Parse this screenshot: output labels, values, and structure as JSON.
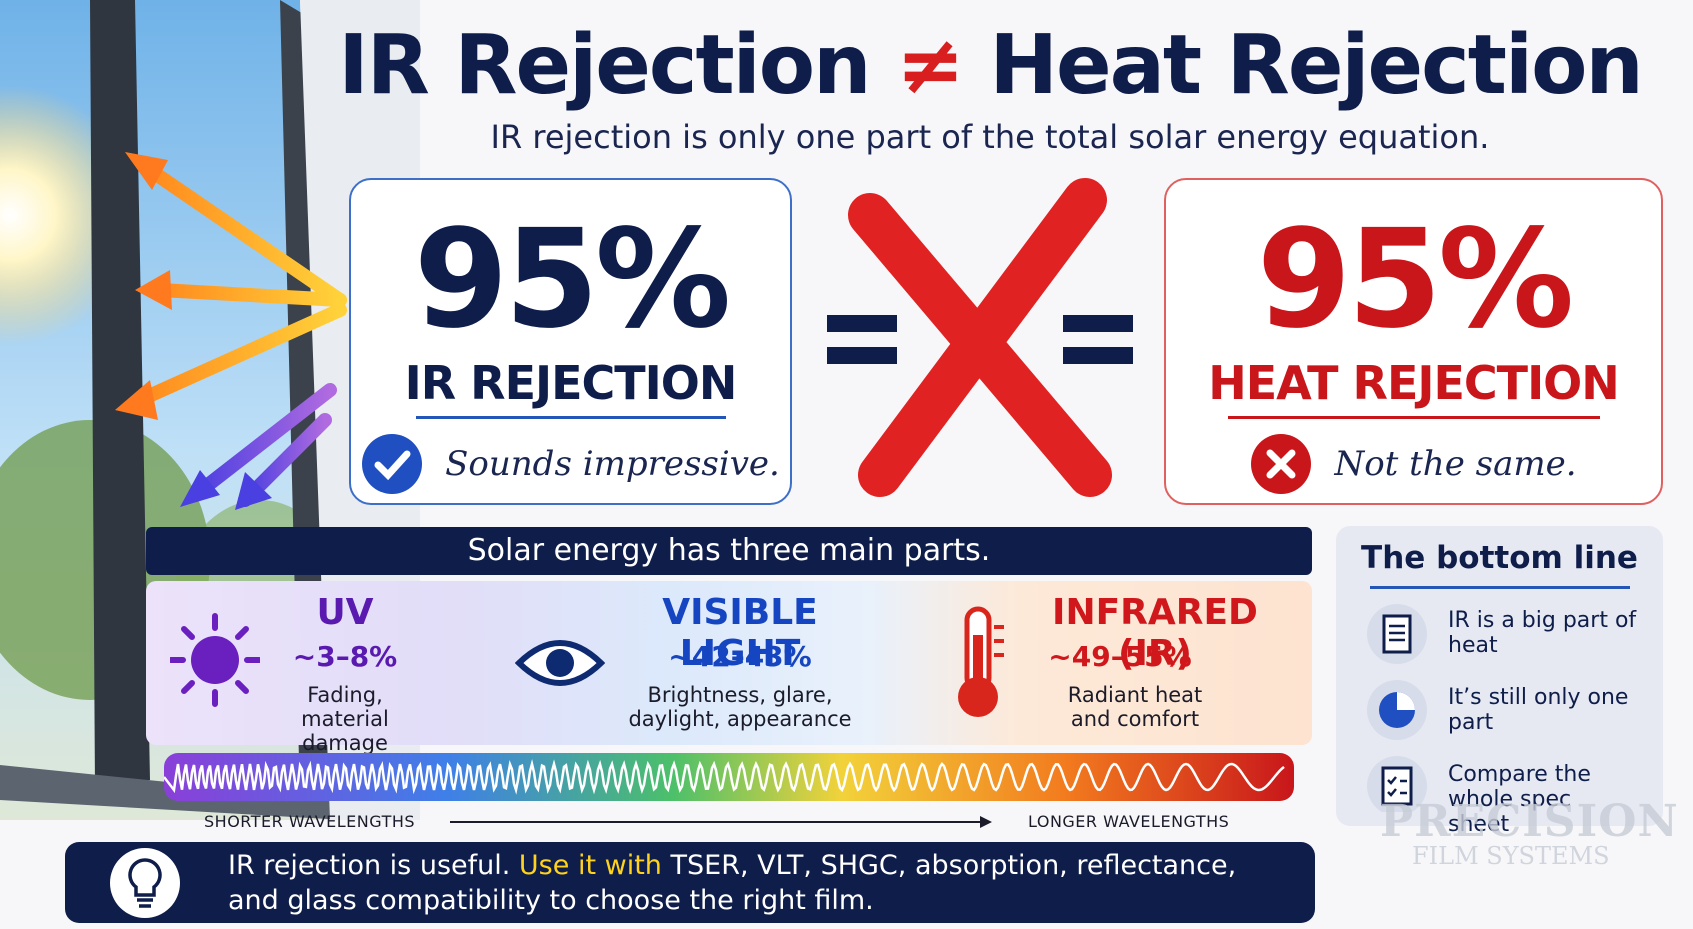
{
  "title": {
    "left": "IR Rejection",
    "symbol": "≠",
    "right": "Heat Rejection"
  },
  "subtitle": "IR rejection is only one part of the total solar energy equation.",
  "left_card": {
    "number": "95%",
    "label": "IR REJECTION",
    "note": "Sounds impressive."
  },
  "right_card": {
    "number": "95%",
    "label": "HEAT REJECTION",
    "note": "Not the same."
  },
  "parts": {
    "header": "Solar energy has three main parts.",
    "items": [
      {
        "name": "UV",
        "share": "~3–8%",
        "description": "Fading, material damage"
      },
      {
        "name": "VISIBLE LIGHT",
        "share": "~42–43%",
        "description": "Brightness, glare, daylight, appearance"
      },
      {
        "name": "INFRARED (IR)",
        "share": "~49–55%",
        "description": "Radiant heat and comfort"
      }
    ],
    "short_label": "SHORTER WAVELENGTHS",
    "long_label": "LONGER WAVELENGTHS"
  },
  "bottom_line": {
    "title": "The bottom line",
    "items": [
      "IR is a big part of heat",
      "It’s still only one part",
      "Compare the whole spec sheet"
    ]
  },
  "tip": {
    "before": "IR rejection is useful.",
    "highlight": "Use it with",
    "after": "TSER, VLT, SHGC, absorption, reflectance, and glass compatibility to choose the right film."
  },
  "watermark": {
    "name": "PRECISION",
    "sub": "FILM SYSTEMS"
  }
}
